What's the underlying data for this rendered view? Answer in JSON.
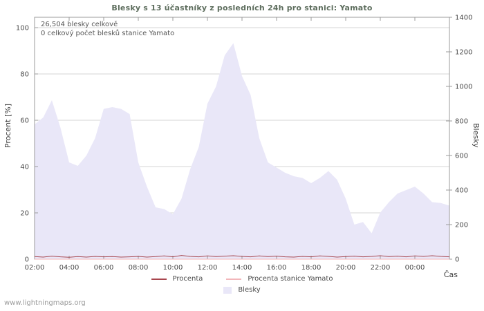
{
  "page": {
    "title": "Blesky s 13 účastníky z posledních 24h pro stanici: Yamato",
    "annotation_total": "26,504 blesky celkově",
    "annotation_station": "0 celkový počet blesků stanice Yamato",
    "left_axis_label": "Procent  [%]",
    "right_axis_label": "Blesky",
    "x_axis_label": "Čas",
    "watermark": "www.lightningmaps.org"
  },
  "legend": {
    "procenta": "Procenta",
    "station": "Procenta stanice Yamato",
    "blesky": "Blesky"
  },
  "colors": {
    "area": "#e9e7f8",
    "procenta_line": "#a8464e",
    "station_line": "#f2b6ba",
    "grid": "#d6d6d6",
    "frame": "#9b9b9b",
    "text": "#4a4a4a"
  },
  "chart_data": {
    "type": "area",
    "title": "Blesky s 13 účastníky z posledních 24h pro stanici: Yamato",
    "x_start": "02:00",
    "x_interval_hours": 0.5,
    "hours_span": 24,
    "grid": true,
    "legend_position": "bottom",
    "x_ticks": [
      "02:00",
      "04:00",
      "06:00",
      "08:00",
      "10:00",
      "12:00",
      "14:00",
      "16:00",
      "18:00",
      "20:00",
      "22:00",
      "00:00"
    ],
    "left_axis": {
      "label": "Procent [%]",
      "min": 0,
      "max": 100,
      "ticks": [
        0,
        20,
        40,
        60,
        80,
        100
      ]
    },
    "right_axis": {
      "label": "Blesky",
      "min": 0,
      "max": 1400,
      "ticks": [
        0,
        200,
        400,
        600,
        800,
        1000,
        1200,
        1400
      ]
    },
    "series": [
      {
        "name": "Blesky",
        "kind": "area",
        "axis": "right",
        "color": "#e9e7f8",
        "values": [
          780,
          820,
          920,
          760,
          560,
          540,
          600,
          700,
          870,
          880,
          870,
          840,
          560,
          420,
          300,
          290,
          260,
          350,
          520,
          650,
          900,
          1000,
          1180,
          1250,
          1060,
          950,
          700,
          560,
          530,
          500,
          480,
          470,
          440,
          470,
          510,
          460,
          350,
          200,
          215,
          150,
          270,
          330,
          380,
          400,
          420,
          380,
          330,
          325,
          310
        ]
      },
      {
        "name": "Procenta",
        "kind": "line",
        "axis": "left",
        "color": "#a8464e",
        "values": [
          1.1,
          0.9,
          1.3,
          1.0,
          0.8,
          1.1,
          0.9,
          1.2,
          1.0,
          1.1,
          0.9,
          1.0,
          1.2,
          0.9,
          1.1,
          1.4,
          1.0,
          1.6,
          1.2,
          1.0,
          1.4,
          1.1,
          1.3,
          1.5,
          1.2,
          1.0,
          1.4,
          1.1,
          1.3,
          1.0,
          0.9,
          1.2,
          1.0,
          1.4,
          1.2,
          0.9,
          1.1,
          1.3,
          1.0,
          1.2,
          1.5,
          1.1,
          1.3,
          1.0,
          1.4,
          1.2,
          1.5,
          1.2,
          1.0
        ]
      },
      {
        "name": "Procenta stanice Yamato",
        "kind": "line",
        "axis": "left",
        "color": "#f2b6ba",
        "values": [
          0,
          0,
          0,
          0,
          0,
          0,
          0,
          0,
          0,
          0,
          0,
          0,
          0,
          0,
          0,
          0,
          0,
          0,
          0,
          0,
          0,
          0,
          0,
          0,
          0,
          0,
          0,
          0,
          0,
          0,
          0,
          0,
          0,
          0,
          0,
          0,
          0,
          0,
          0,
          0,
          0,
          0,
          0,
          0,
          0,
          0,
          0,
          0,
          0
        ]
      }
    ]
  }
}
